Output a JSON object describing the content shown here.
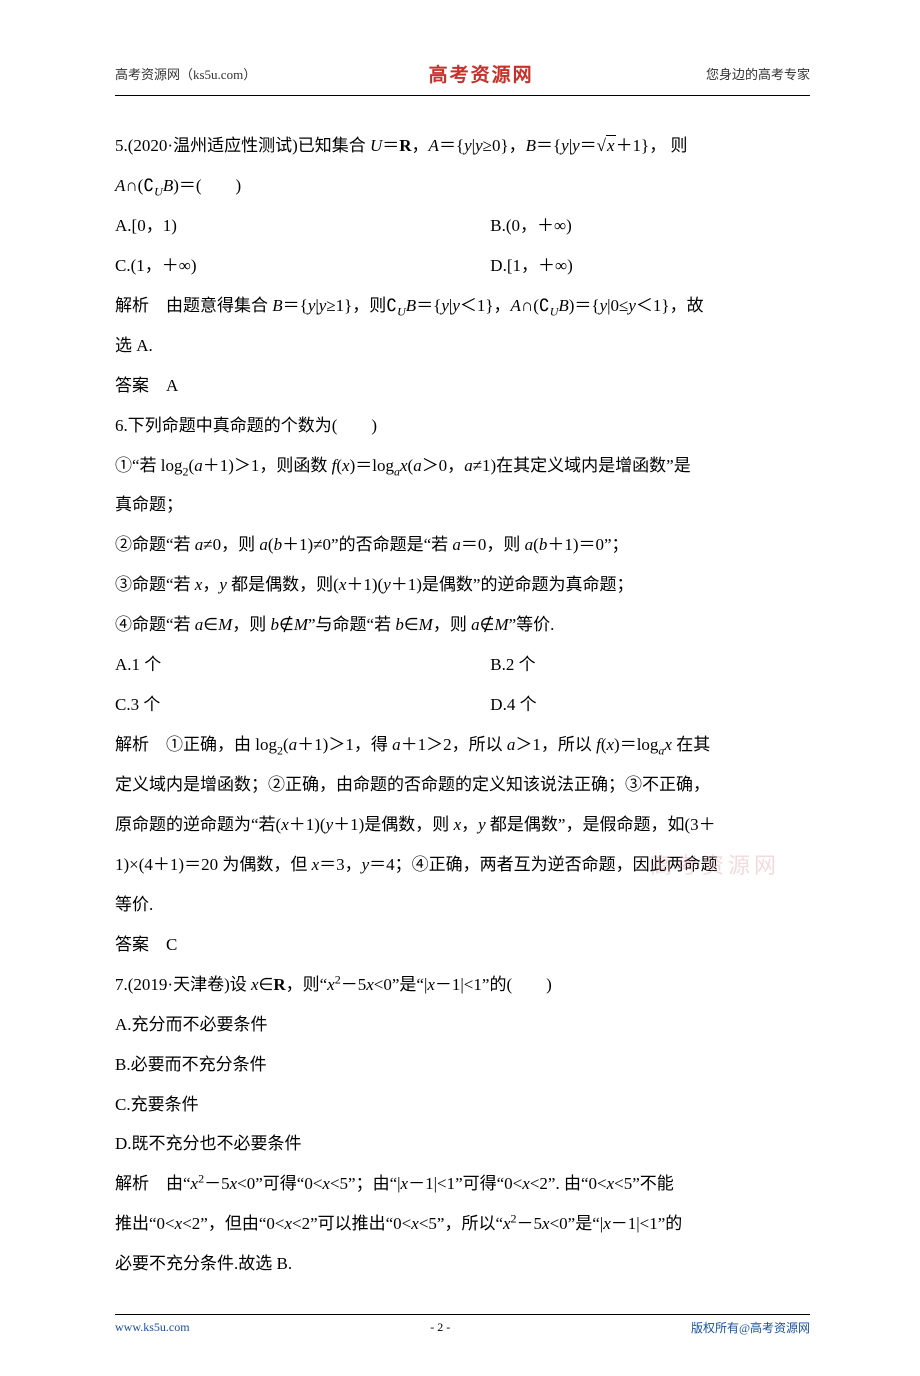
{
  "colors": {
    "brand_red": "#c8302c",
    "link_blue": "#1b4fa0",
    "watermark": "#d99aa0",
    "text": "#000000"
  },
  "header": {
    "left": "高考资源网（ks5u.com）",
    "center": "高考资源网",
    "right": "您身边的高考专家"
  },
  "q5": {
    "stem_a": "5.(2020·温州适应性测试)已知集合 ",
    "stem_b": "U",
    "stem_c": "＝",
    "stem_d": "R",
    "stem_e": "，",
    "stem_f": "A",
    "stem_g": "＝{",
    "stem_h": "y",
    "stem_i": "|",
    "stem_j": "y",
    "stem_k": "≥0}，",
    "stem_l": "B",
    "stem_m": "＝{",
    "stem_n": "y",
    "stem_o": "|",
    "stem_p": "y",
    "stem_q": "＝",
    "sqrt_x": "x",
    "stem_r": "＋1}， 则",
    "line2_a": "A",
    "line2_b": "∩(∁",
    "line2_c": "U",
    "line2_d": "B",
    "line2_e": ")＝(　　)",
    "optA": "A.[0，1)",
    "optB": "B.(0，＋∞)",
    "optC": "C.(1，＋∞)",
    "optD": "D.[1，＋∞)",
    "jiexi_label": "解析",
    "jiexi_a": "　由题意得集合 ",
    "jiexi_b": "B",
    "jiexi_c": "＝{",
    "jiexi_d": "y",
    "jiexi_e": "|",
    "jiexi_f": "y",
    "jiexi_g": "≥1}，则∁",
    "jiexi_h": "U",
    "jiexi_i": "B",
    "jiexi_j": "＝{",
    "jiexi_k": "y",
    "jiexi_l": "|",
    "jiexi_m": "y",
    "jiexi_n": "＜1}，",
    "jiexi_o": "A",
    "jiexi_p": "∩(∁",
    "jiexi_q": "U",
    "jiexi_r": "B",
    "jiexi_s": ")＝{",
    "jiexi_t": "y",
    "jiexi_u": "|0≤",
    "jiexi_v": "y",
    "jiexi_w": "＜1}，故",
    "jiexi_x": "选 A.",
    "daan_label": "答案",
    "daan": "　A"
  },
  "q6": {
    "stem": "6.下列命题中真命题的个数为(　　)",
    "p1_a": "①“若 log",
    "p1_b": "2",
    "p1_c": "(",
    "p1_d": "a",
    "p1_e": "＋1)＞1，则函数 ",
    "p1_f": "f",
    "p1_g": "(",
    "p1_h": "x",
    "p1_i": ")＝log",
    "p1_j": "a",
    "p1_k": "x",
    "p1_l": "(",
    "p1_m": "a",
    "p1_n": "＞0，",
    "p1_o": "a",
    "p1_p": "≠1)在其定义域内是增函数”是",
    "p1_q": "真命题；",
    "p2_a": "②命题“若 ",
    "p2_b": "a",
    "p2_c": "≠0，则 ",
    "p2_d": "a",
    "p2_e": "(",
    "p2_f": "b",
    "p2_g": "＋1)≠0”的否命题是“若 ",
    "p2_h": "a",
    "p2_i": "＝0，则 ",
    "p2_j": "a",
    "p2_k": "(",
    "p2_l": "b",
    "p2_m": "＋1)＝0”；",
    "p3_a": "③命题“若 ",
    "p3_b": "x",
    "p3_c": "，",
    "p3_d": "y",
    "p3_e": " 都是偶数，则(",
    "p3_f": "x",
    "p3_g": "＋1)(",
    "p3_h": "y",
    "p3_i": "＋1)是偶数”的逆命题为真命题；",
    "p4_a": "④命题“若 ",
    "p4_b": "a",
    "p4_c": "∈",
    "p4_d": "M",
    "p4_e": "，则 ",
    "p4_f": "b",
    "p4_g": "∉",
    "p4_h": "M",
    "p4_i": "”与命题“若 ",
    "p4_j": "b",
    "p4_k": "∈",
    "p4_l": "M",
    "p4_m": "，则 ",
    "p4_n": "a",
    "p4_o": "∉",
    "p4_p": "M",
    "p4_q": "”等价.",
    "optA": "A.1 个",
    "optB": "B.2 个",
    "optC": "C.3 个",
    "optD": "D.4 个",
    "jiexi_label": "解析",
    "jx_a": "　①正确，由 log",
    "jx_b": "2",
    "jx_c": "(",
    "jx_d": "a",
    "jx_e": "＋1)＞1，得 ",
    "jx_f": "a",
    "jx_g": "＋1＞2，所以 ",
    "jx_h": "a",
    "jx_i": "＞1，所以 ",
    "jx_j": "f",
    "jx_k": "(",
    "jx_l": "x",
    "jx_m": ")＝log",
    "jx_n": "a",
    "jx_o": "x",
    "jx_p": " 在其",
    "jx2": "定义域内是增函数；②正确，由命题的否命题的定义知该说法正确；③不正确，",
    "jx3_a": "原命题的逆命题为“若(",
    "jx3_b": "x",
    "jx3_c": "＋1)(",
    "jx3_d": "y",
    "jx3_e": "＋1)是偶数，则 ",
    "jx3_f": "x",
    "jx3_g": "，",
    "jx3_h": "y",
    "jx3_i": " 都是偶数”，是假命题，如(3＋",
    "jx4_a": "1)×(4＋1)＝20 为偶数，但 ",
    "jx4_b": "x",
    "jx4_c": "＝3，",
    "jx4_d": "y",
    "jx4_e": "＝4；④正确，两者互为逆否命题，因此两命题",
    "jx5": "等价.",
    "daan_label": "答案",
    "daan": "　C"
  },
  "q7": {
    "stem_a": "7.(2019·天津卷)设 ",
    "stem_b": "x",
    "stem_c": "∈",
    "stem_d": "R",
    "stem_e": "，则“",
    "stem_f": "x",
    "stem_g": "2",
    "stem_h": "－5",
    "stem_i": "x",
    "stem_j": "<0”是“|",
    "stem_k": "x",
    "stem_l": "－1|<1”的(　　)",
    "optA": "A.充分而不必要条件",
    "optB": "B.必要而不充分条件",
    "optC": "C.充要条件",
    "optD": "D.既不充分也不必要条件",
    "jiexi_label": "解析",
    "jx_a": "　由“",
    "jx_b": "x",
    "jx_c": "2",
    "jx_d": "－5",
    "jx_e": "x",
    "jx_f": "<0”可得“0<",
    "jx_g": "x",
    "jx_h": "<5”；由“|",
    "jx_i": "x",
    "jx_j": "－1|<1”可得“0<",
    "jx_k": "x",
    "jx_l": "<2”. 由“0<",
    "jx_m": "x",
    "jx_n": "<5”不能",
    "jx2_a": "推出“0<",
    "jx2_b": "x",
    "jx2_c": "<2”，但由“0<",
    "jx2_d": "x",
    "jx2_e": "<2”可以推出“0<",
    "jx2_f": "x",
    "jx2_g": "<5”，所以“",
    "jx2_h": "x",
    "jx2_i": "2",
    "jx2_j": "－5",
    "jx2_k": "x",
    "jx2_l": "<0”是“|",
    "jx2_m": "x",
    "jx2_n": "－1|<1”的",
    "jx3": "必要不充分条件.故选 B."
  },
  "watermark": "高考资源网",
  "footer": {
    "left": "www.ks5u.com",
    "center": "- 2 -",
    "right": "版权所有@高考资源网"
  }
}
